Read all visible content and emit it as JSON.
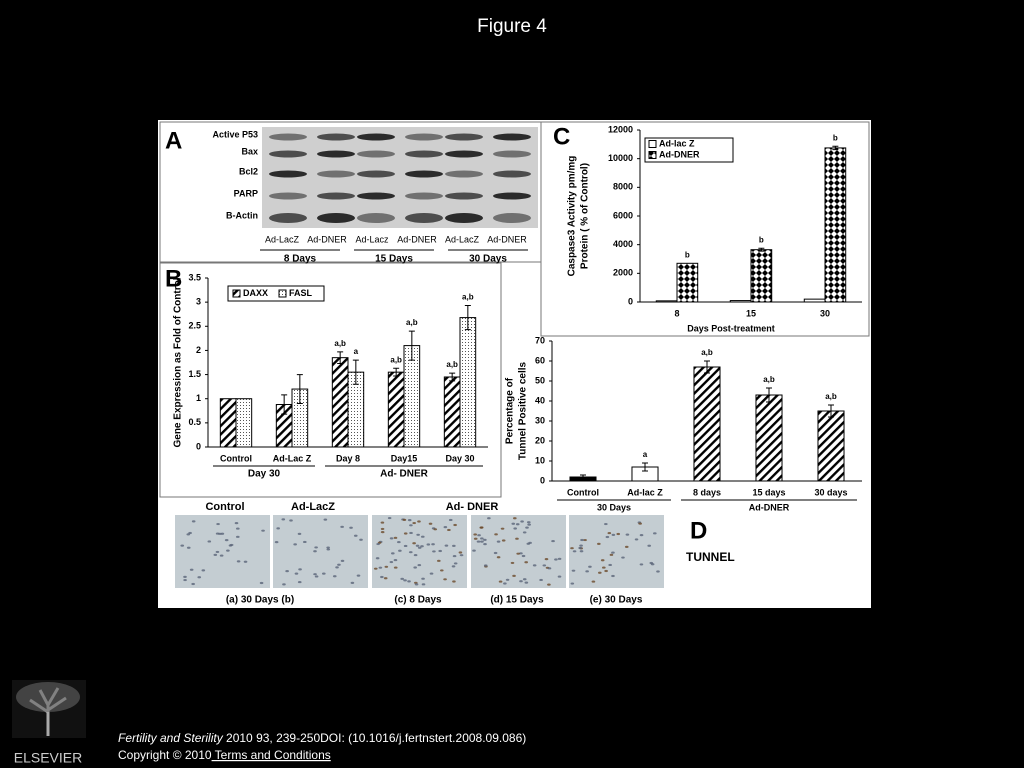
{
  "title": "Figure 4",
  "blot": {
    "panel": "A",
    "rows": [
      "Active P53",
      "Bax",
      "Bcl2",
      "PARP",
      "B-Actin"
    ],
    "lanes": [
      "Ad-LacZ",
      "Ad-DNER",
      "Ad-Lacz",
      "Ad-DNER",
      "Ad-LacZ",
      "Ad-DNER"
    ],
    "times": [
      "8 Days",
      "15 Days",
      "30 Days"
    ]
  },
  "chart_data": [
    {
      "type": "bar",
      "panel": "B",
      "ylabel": [
        "Gene Expression as Fold of Control"
      ],
      "categories": [
        "Control",
        "Ad-Lac Z",
        "Day 8",
        "Day15",
        "Day 30"
      ],
      "group_labels": [
        "Day 30",
        "Ad- DNER"
      ],
      "series": [
        {
          "name": "DAXX",
          "pattern": "hatch",
          "values": [
            1,
            0.88,
            1.85,
            1.55,
            1.45
          ],
          "errors": [
            null,
            0.2,
            0.12,
            0.08,
            0.08
          ],
          "labels": [
            null,
            null,
            "a,b",
            "a,b",
            "a,b"
          ]
        },
        {
          "name": "FASL",
          "pattern": "dots",
          "values": [
            1,
            1.2,
            1.55,
            2.1,
            2.68
          ],
          "errors": [
            null,
            0.3,
            0.25,
            0.3,
            0.25
          ],
          "labels": [
            null,
            null,
            "a",
            "a,b",
            "a,b"
          ]
        }
      ],
      "ylim": [
        0,
        3.5
      ],
      "yticks": [
        0,
        0.5,
        1,
        1.5,
        2,
        2.5,
        3,
        3.5
      ]
    },
    {
      "type": "bar",
      "panel": "C",
      "ylabel": [
        "Caspase3  Activity  pm/mg",
        "Protein   ( % of Control)"
      ],
      "xlabel": "Days Post-treatment",
      "categories": [
        "8",
        "15",
        "30"
      ],
      "series": [
        {
          "name": "Ad-lac Z",
          "pattern": "open",
          "values": [
            80,
            100,
            200
          ],
          "errors": [
            null,
            null,
            null
          ],
          "labels": [
            null,
            null,
            null
          ]
        },
        {
          "name": "Ad-DNER",
          "pattern": "diamond",
          "values": [
            2700,
            3650,
            10750
          ],
          "errors": [
            null,
            100,
            120
          ],
          "labels": [
            "b",
            "b",
            "b"
          ]
        }
      ],
      "ylim": [
        0,
        12000
      ],
      "yticks": [
        0,
        2000,
        4000,
        6000,
        8000,
        10000,
        12000
      ]
    },
    {
      "type": "bar",
      "panel": "D",
      "ylabel": [
        "Percentage of",
        "Tunnel Positive cells"
      ],
      "categories": [
        "Control",
        "Ad-lac Z",
        "8 days",
        "15 days",
        "30 days"
      ],
      "group_labels": [
        "30 Days",
        "Ad-DNER"
      ],
      "series": [
        {
          "patterns": [
            "solid",
            "open",
            "hatch",
            "hatch",
            "hatch"
          ],
          "values": [
            2,
            7,
            57,
            43,
            35
          ],
          "errors": [
            1,
            2,
            3,
            3.5,
            3
          ],
          "labels": [
            null,
            "a",
            "a,b",
            "a,b",
            "a,b"
          ]
        }
      ],
      "ylim": [
        0,
        70
      ],
      "yticks": [
        0,
        10,
        20,
        30,
        40,
        50,
        60,
        70
      ],
      "note": "TUNNEL"
    }
  ],
  "micrographs": {
    "headers": [
      "Control",
      "Ad-LacZ",
      "Ad- DNER"
    ],
    "captions": [
      "(a)  30 Days  (b)",
      "(c)  8  Days",
      "(d)  15  Days",
      "(e)  30 Days"
    ]
  },
  "citation": {
    "journal": "Fertility and Sterility",
    "reference": " 2010 93, 239-250DOI: (10.1016/j.fertnstert.2008.09.086)",
    "copyright": "Copyright © 2010",
    "link": " Terms and Conditions"
  },
  "logo": "ELSEVIER"
}
